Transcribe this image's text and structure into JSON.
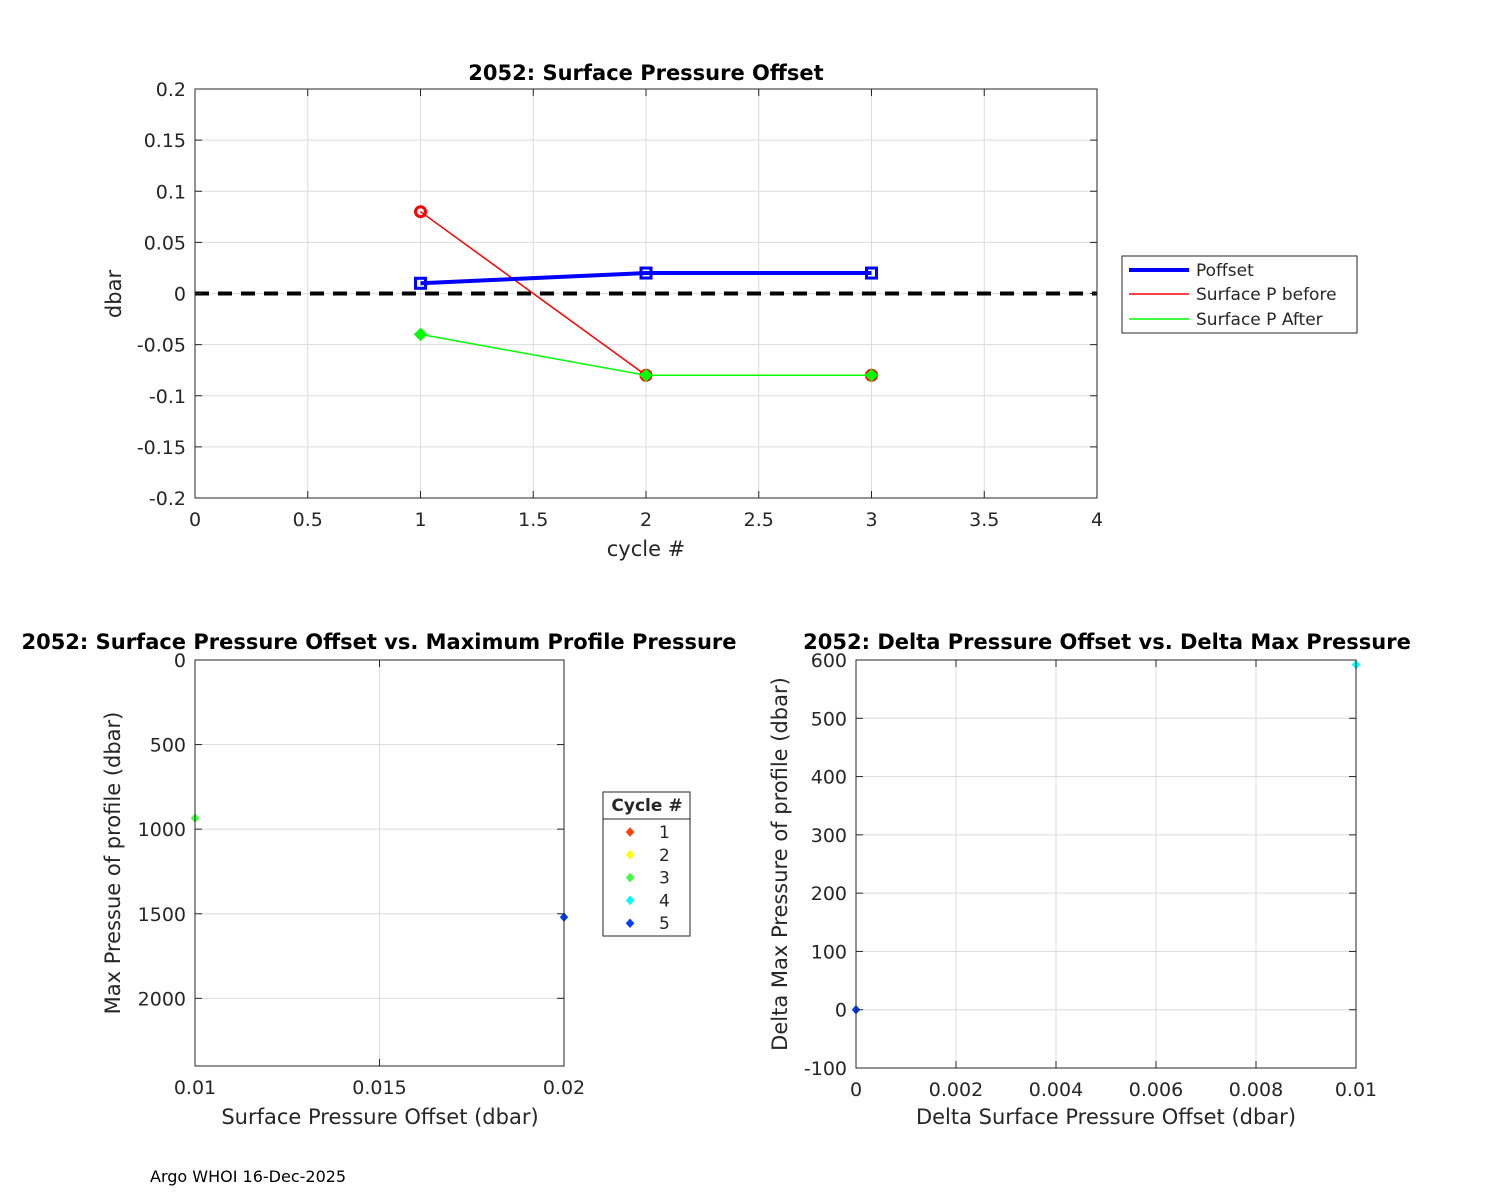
{
  "footer": "Argo WHOI 16-Dec-2025",
  "chart_data": [
    {
      "type": "line",
      "title": "2052: Surface Pressure Offset",
      "xlabel": "cycle #",
      "ylabel": "dbar",
      "xlim": [
        0,
        4
      ],
      "ylim": [
        -0.2,
        0.2
      ],
      "xticks": [
        0,
        0.5,
        1,
        1.5,
        2,
        2.5,
        3,
        3.5,
        4
      ],
      "xtick_labels": [
        "0",
        "0.5",
        "1",
        "1.5",
        "2",
        "2.5",
        "3",
        "3.5",
        "4"
      ],
      "yticks": [
        0.2,
        0.15,
        0.1,
        0.05,
        0,
        -0.05,
        -0.1,
        -0.15,
        -0.2
      ],
      "ytick_labels": [
        "0.2",
        "0.15",
        "0.1",
        "0.05",
        "0",
        "-0.05",
        "-0.1",
        "-0.15",
        "-0.2"
      ],
      "grid": true,
      "legend": "outside-right",
      "reference_line": {
        "y": 0,
        "style": "dashed",
        "color": "#000000"
      },
      "series": [
        {
          "name": "Poffset",
          "x": [
            1,
            2,
            3
          ],
          "y": [
            0.01,
            0.02,
            0.02
          ],
          "color": "#0000ff",
          "marker": "square"
        },
        {
          "name": "Surface P before",
          "x": [
            1,
            2,
            3
          ],
          "y": [
            0.08,
            -0.08,
            -0.08
          ],
          "color": "#ff0000",
          "marker": "circle"
        },
        {
          "name": "Surface P After",
          "x": [
            1,
            2,
            3
          ],
          "y": [
            -0.04,
            -0.08,
            -0.08
          ],
          "color": "#00ff00",
          "marker": "diamond"
        }
      ]
    },
    {
      "type": "scatter",
      "title": "2052: Surface Pressure Offset vs. Maximum Profile Pressure",
      "xlabel": "Surface Pressure Offset (dbar)",
      "ylabel": "Max Pressue of profile (dbar)",
      "xlim": [
        0.01,
        0.02
      ],
      "ylim": [
        0,
        2400
      ],
      "y_reversed": true,
      "xticks": [
        0.01,
        0.015,
        0.02
      ],
      "xtick_labels": [
        "0.01",
        "0.015",
        "0.02"
      ],
      "yticks": [
        0,
        500,
        1000,
        1500,
        2000
      ],
      "ytick_labels": [
        "0",
        "500",
        "1000",
        "1500",
        "2000"
      ],
      "grid": true,
      "legend_title": "Cycle #",
      "legend": [
        {
          "label": "1",
          "color": "#ff4000"
        },
        {
          "label": "2",
          "color": "#ffff00"
        },
        {
          "label": "3",
          "color": "#40ff40"
        },
        {
          "label": "4",
          "color": "#00ffff"
        },
        {
          "label": "5",
          "color": "#0040ff"
        }
      ],
      "points": [
        {
          "x": 0.01,
          "y": 935,
          "color": "#40ff40"
        },
        {
          "x": 0.02,
          "y": 1520,
          "color": "#0040ff"
        }
      ]
    },
    {
      "type": "scatter",
      "title": "2052: Delta Pressure Offset vs. Delta Max Pressure",
      "xlabel": "Delta Surface Pressure Offset (dbar)",
      "ylabel": "Delta Max Pressure of profile (dbar)",
      "xlim": [
        0,
        0.01
      ],
      "ylim": [
        -100,
        600
      ],
      "xticks": [
        0,
        0.002,
        0.004,
        0.006,
        0.008,
        0.01
      ],
      "xtick_labels": [
        "0",
        "0.002",
        "0.004",
        "0.006",
        "0.008",
        "0.01"
      ],
      "yticks": [
        600,
        500,
        400,
        300,
        200,
        100,
        0,
        -100
      ],
      "ytick_labels": [
        "600",
        "500",
        "400",
        "300",
        "200",
        "100",
        "0",
        "-100"
      ],
      "grid": true,
      "points": [
        {
          "x": 0.01,
          "y": 592,
          "color": "#00ffff"
        },
        {
          "x": 0,
          "y": 0,
          "color": "#0040ff"
        }
      ]
    }
  ]
}
